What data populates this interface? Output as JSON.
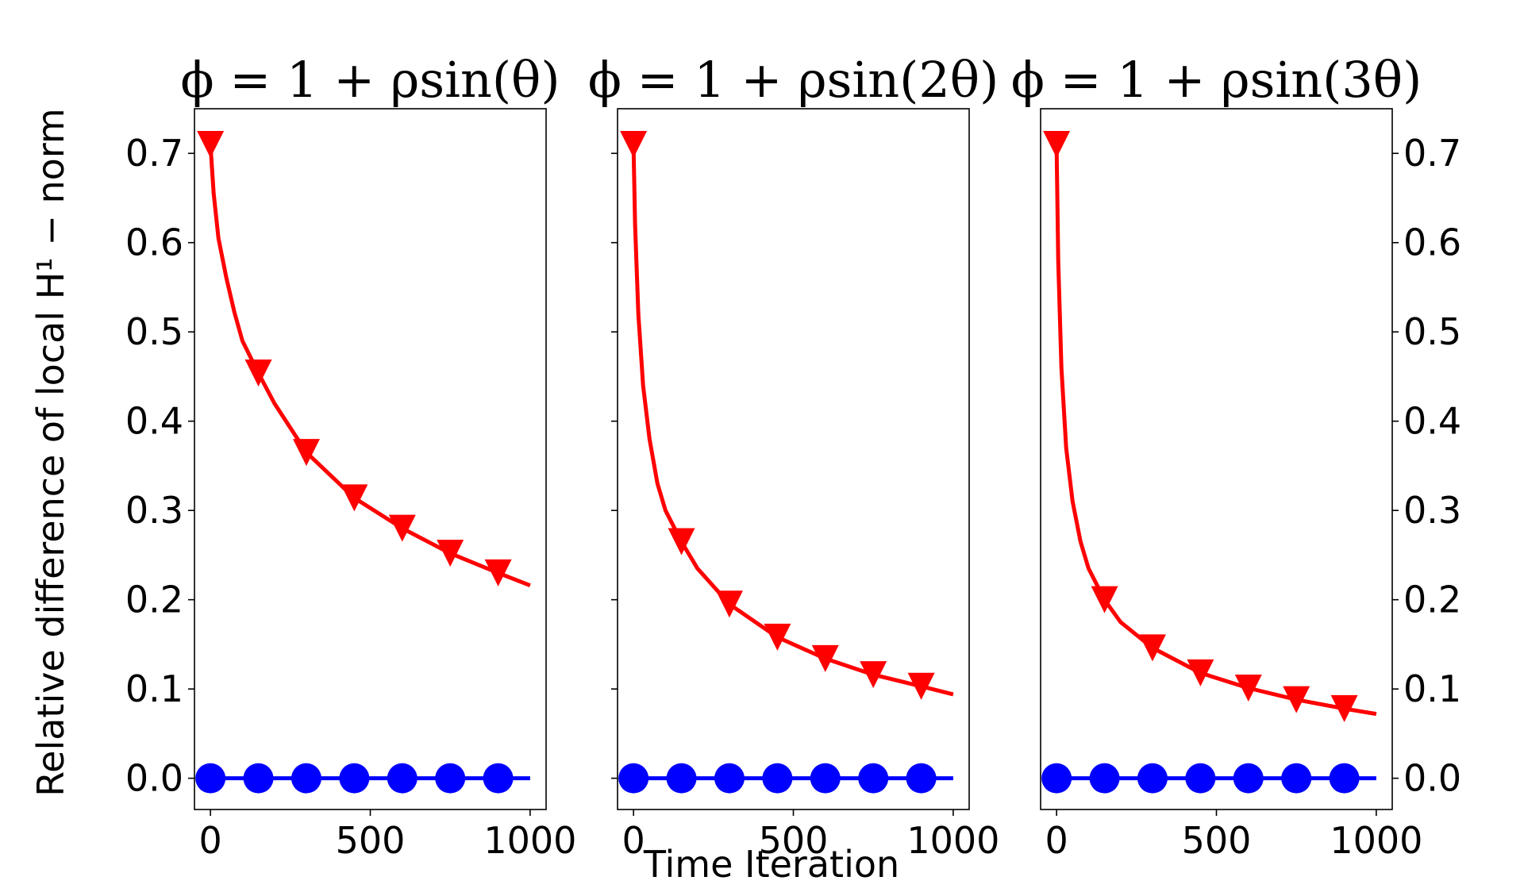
{
  "figure": {
    "ylabel": "Relative difference of local H¹ − norm",
    "xlabel": "Time Iteration"
  },
  "chart_data": [
    {
      "type": "line",
      "title": "ϕ = 1 + ρsin(θ)",
      "xlabel": "",
      "ylabel": "Relative difference of local H¹ − norm",
      "xlim": [
        -50,
        1050
      ],
      "ylim": [
        -0.035,
        0.75
      ],
      "xticks": [
        0,
        500,
        1000
      ],
      "yticks": [
        0.0,
        0.1,
        0.2,
        0.3,
        0.4,
        0.5,
        0.6,
        0.7
      ],
      "y_axis_side": "left",
      "grid": false,
      "series": [
        {
          "color": "#ff0000",
          "marker": "triangle-down",
          "curve_x": [
            0,
            10,
            25,
            50,
            75,
            100,
            150,
            200,
            300,
            450,
            600,
            750,
            900,
            1000
          ],
          "curve_y": [
            0.71,
            0.655,
            0.605,
            0.56,
            0.522,
            0.49,
            0.454,
            0.42,
            0.365,
            0.314,
            0.28,
            0.252,
            0.23,
            0.216
          ],
          "marker_x": [
            0,
            150,
            300,
            450,
            600,
            750,
            900
          ],
          "marker_y": [
            0.71,
            0.454,
            0.365,
            0.314,
            0.28,
            0.252,
            0.23
          ]
        },
        {
          "color": "#0000ff",
          "marker": "circle",
          "curve_x": [
            0,
            1000
          ],
          "curve_y": [
            0.0,
            0.0
          ],
          "marker_x": [
            0,
            150,
            300,
            450,
            600,
            750,
            900
          ],
          "marker_y": [
            0,
            0,
            0,
            0,
            0,
            0,
            0
          ]
        }
      ]
    },
    {
      "type": "line",
      "title": "ϕ = 1 + ρsin(2θ)",
      "xlabel": "Time Iteration",
      "ylabel": "",
      "xlim": [
        -50,
        1050
      ],
      "ylim": [
        -0.035,
        0.75
      ],
      "xticks": [
        0,
        500,
        1000
      ],
      "yticks": [
        0.0,
        0.1,
        0.2,
        0.3,
        0.4,
        0.5,
        0.6,
        0.7
      ],
      "y_axis_side": "none",
      "grid": false,
      "series": [
        {
          "color": "#ff0000",
          "marker": "triangle-down",
          "curve_x": [
            0,
            5,
            15,
            30,
            50,
            75,
            100,
            150,
            200,
            300,
            450,
            600,
            750,
            900,
            1000
          ],
          "curve_y": [
            0.71,
            0.62,
            0.52,
            0.44,
            0.38,
            0.33,
            0.3,
            0.265,
            0.235,
            0.195,
            0.158,
            0.134,
            0.116,
            0.103,
            0.094
          ],
          "marker_x": [
            0,
            150,
            300,
            450,
            600,
            750,
            900
          ],
          "marker_y": [
            0.71,
            0.265,
            0.195,
            0.158,
            0.134,
            0.116,
            0.103
          ]
        },
        {
          "color": "#0000ff",
          "marker": "circle",
          "curve_x": [
            0,
            1000
          ],
          "curve_y": [
            0.0,
            0.0
          ],
          "marker_x": [
            0,
            150,
            300,
            450,
            600,
            750,
            900
          ],
          "marker_y": [
            0,
            0,
            0,
            0,
            0,
            0,
            0
          ]
        }
      ]
    },
    {
      "type": "line",
      "title": "ϕ = 1 + ρsin(3θ)",
      "xlabel": "",
      "ylabel": "",
      "xlim": [
        -50,
        1050
      ],
      "ylim": [
        -0.035,
        0.75
      ],
      "xticks": [
        0,
        500,
        1000
      ],
      "yticks": [
        0.0,
        0.1,
        0.2,
        0.3,
        0.4,
        0.5,
        0.6,
        0.7
      ],
      "y_axis_side": "right",
      "grid": false,
      "series": [
        {
          "color": "#ff0000",
          "marker": "triangle-down",
          "curve_x": [
            0,
            5,
            15,
            30,
            50,
            75,
            100,
            150,
            200,
            300,
            450,
            600,
            750,
            900,
            1000
          ],
          "curve_y": [
            0.71,
            0.58,
            0.46,
            0.37,
            0.31,
            0.265,
            0.235,
            0.2,
            0.175,
            0.146,
            0.118,
            0.101,
            0.088,
            0.078,
            0.072
          ],
          "marker_x": [
            0,
            150,
            300,
            450,
            600,
            750,
            900
          ],
          "marker_y": [
            0.71,
            0.2,
            0.146,
            0.118,
            0.101,
            0.088,
            0.078
          ]
        },
        {
          "color": "#0000ff",
          "marker": "circle",
          "curve_x": [
            0,
            1000
          ],
          "curve_y": [
            0.0,
            0.0
          ],
          "marker_x": [
            0,
            150,
            300,
            450,
            600,
            750,
            900
          ],
          "marker_y": [
            0,
            0,
            0,
            0,
            0,
            0,
            0
          ]
        }
      ]
    }
  ]
}
